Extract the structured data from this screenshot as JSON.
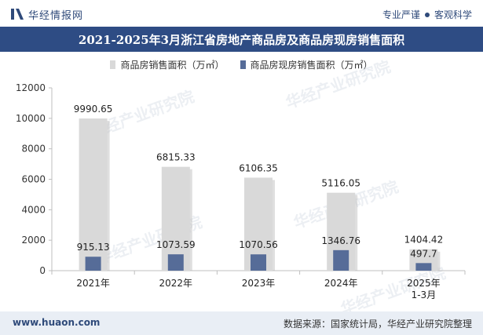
{
  "header": {
    "brand": "华经情报网",
    "slogan_left": "专业严谨",
    "slogan_right": "客观科学"
  },
  "footer": {
    "url": "www.huaon.com",
    "source": "数据来源：国家统计局，华经产业研究院整理"
  },
  "watermark": "华经产业研究院",
  "colors": {
    "title_bg": "#2e4c84",
    "series_sales": "#d9d9d9",
    "series_spot": "#566c98"
  },
  "chart_data": {
    "type": "bar",
    "title": "2021-2025年3月浙江省房地产商品房及商品房现房销售面积",
    "categories": [
      "2021年",
      "2022年",
      "2023年",
      "2024年",
      "2025年\n1-3月"
    ],
    "series": [
      {
        "name": "商品房销售面积（万㎡）",
        "values": [
          9990.65,
          6815.33,
          6106.35,
          5116.05,
          1404.42
        ],
        "labels": [
          "9990.65",
          "6815.33",
          "6106.35",
          "5116.05",
          "1404.42"
        ]
      },
      {
        "name": "商品房现房销售面积（万㎡）",
        "values": [
          915.13,
          1073.59,
          1070.56,
          1346.76,
          497.7
        ],
        "labels": [
          "915.13",
          "1073.59",
          "1070.56",
          "1346.76",
          "497.7"
        ]
      }
    ],
    "ylim": [
      0,
      12000
    ],
    "yticks": [
      0,
      2000,
      4000,
      6000,
      8000,
      10000,
      12000
    ],
    "xlabel": "",
    "ylabel": "",
    "legend": "top-center",
    "grid": false
  }
}
